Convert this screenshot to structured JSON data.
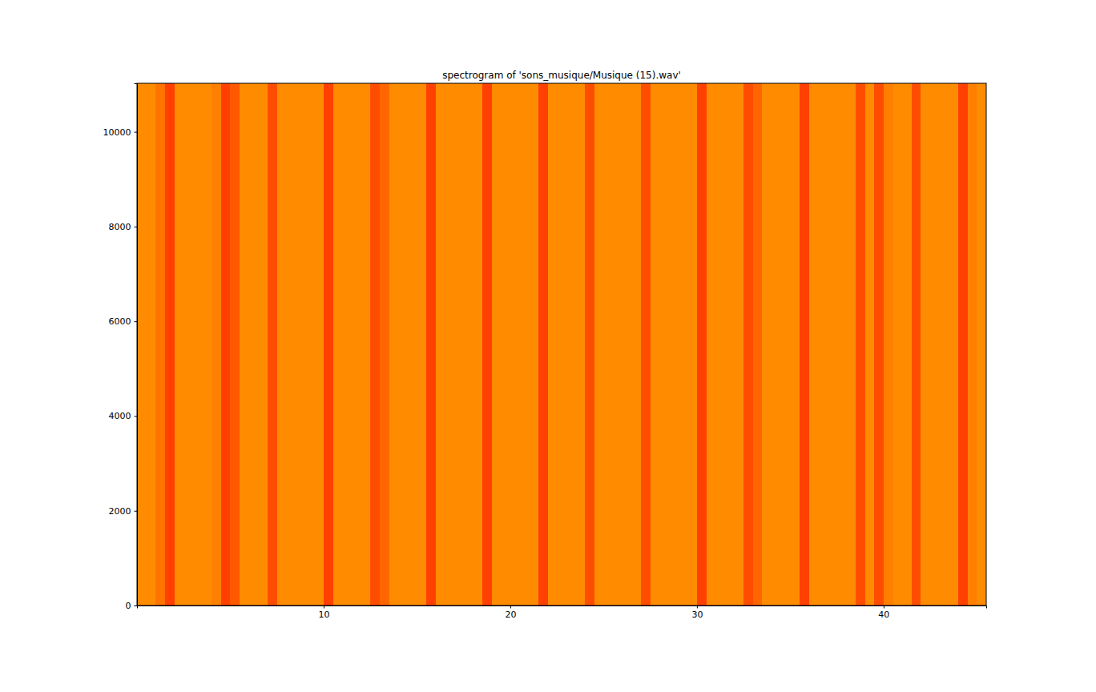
{
  "chart_data": {
    "type": "heatmap",
    "title": "spectrogram of 'sons_musique/Musique (15).wav'",
    "x": [
      0,
      0.5,
      1,
      1.5,
      2,
      2.5,
      3,
      3.5,
      4,
      4.5,
      5,
      5.5,
      6,
      6.5,
      7,
      7.5,
      8,
      8.5,
      9,
      9.5,
      10,
      10.5,
      11,
      11.5,
      12,
      12.5,
      13,
      13.5,
      14,
      14.5,
      15,
      15.5,
      16,
      16.5,
      17,
      17.5,
      18,
      18.5,
      19,
      19.5,
      20,
      20.5,
      21,
      21.5,
      22,
      22.5,
      23,
      23.5,
      24,
      24.5,
      25,
      25.5,
      26,
      26.5,
      27,
      27.5,
      28,
      28.5,
      29,
      29.5,
      30,
      30.5,
      31,
      31.5,
      32,
      32.5,
      33,
      33.5,
      34,
      34.5,
      35,
      35.5,
      36,
      36.5,
      37,
      37.5,
      38,
      38.5,
      39,
      39.5,
      40,
      40.5,
      41,
      41.5,
      42,
      42.5,
      43,
      43.5,
      44,
      44.5,
      45,
      45.5
    ],
    "y": [
      0,
      11025
    ],
    "values": [
      [
        0.55,
        0.55,
        0.45,
        0.25,
        0.55,
        0.55,
        0.55,
        0.55,
        0.5,
        0.25,
        0.35,
        0.55,
        0.55,
        0.55,
        0.3,
        0.55,
        0.55,
        0.55,
        0.55,
        0.55,
        0.25,
        0.55,
        0.55,
        0.55,
        0.55,
        0.3,
        0.4,
        0.55,
        0.55,
        0.55,
        0.55,
        0.25,
        0.55,
        0.55,
        0.55,
        0.55,
        0.55,
        0.25,
        0.55,
        0.55,
        0.55,
        0.55,
        0.55,
        0.25,
        0.55,
        0.55,
        0.55,
        0.55,
        0.3,
        0.55,
        0.55,
        0.55,
        0.55,
        0.55,
        0.3,
        0.55,
        0.55,
        0.55,
        0.55,
        0.55,
        0.25,
        0.55,
        0.55,
        0.55,
        0.55,
        0.3,
        0.4,
        0.55,
        0.55,
        0.55,
        0.55,
        0.25,
        0.55,
        0.55,
        0.55,
        0.55,
        0.55,
        0.3,
        0.55,
        0.3,
        0.5,
        0.55,
        0.55,
        0.3,
        0.55,
        0.55,
        0.55,
        0.55,
        0.25,
        0.5,
        0.55
      ]
    ],
    "zlim": [
      0,
      1
    ],
    "xlim": [
      0,
      45.5
    ],
    "xticks": [
      10,
      20,
      30,
      40
    ],
    "ylim": [
      0,
      11025
    ],
    "yticks": [
      0,
      2000,
      4000,
      6000,
      8000,
      10000
    ]
  }
}
